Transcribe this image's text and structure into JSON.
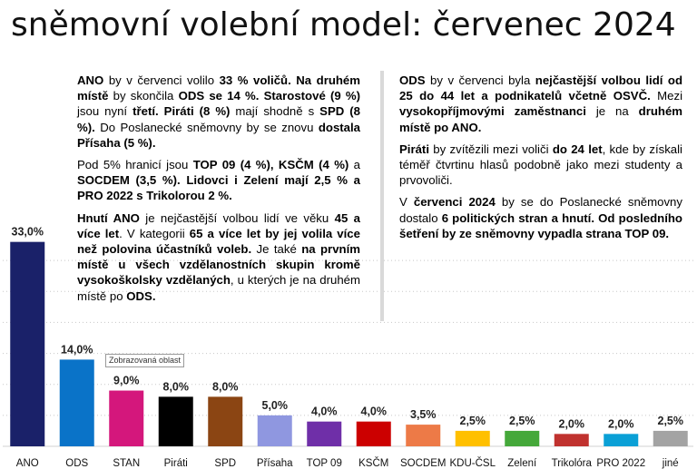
{
  "title": "sněmovní volební model: červenec 2024",
  "tooltip": "Zobrazovaná oblast",
  "chart_data": {
    "type": "bar",
    "title": "sněmovní volební model: červenec 2024",
    "categories": [
      "ANO",
      "ODS",
      "STAN",
      "Piráti",
      "SPD",
      "Přísaha",
      "TOP 09",
      "KSČM",
      "SOCDEM",
      "KDU-ČSL",
      "Zelení",
      "Trikolóra",
      "PRO 2022",
      "jiné"
    ],
    "values": [
      33.0,
      14.0,
      9.0,
      8.0,
      8.0,
      5.0,
      4.0,
      4.0,
      3.5,
      2.5,
      2.5,
      2.0,
      2.0,
      2.5
    ],
    "value_labels": [
      "33,0%",
      "14,0%",
      "9,0%",
      "8,0%",
      "8,0%",
      "5,0%",
      "4,0%",
      "4,0%",
      "3,5%",
      "2,5%",
      "2,5%",
      "2,0%",
      "2,0%",
      "2,5%"
    ],
    "colors": [
      "#1a2169",
      "#0a73c8",
      "#d4177c",
      "#000000",
      "#8b4513",
      "#8f97e0",
      "#6f2fa8",
      "#cc0000",
      "#ed7a47",
      "#ffc000",
      "#45a83a",
      "#c0322f",
      "#0aa0d6",
      "#a3a3a3"
    ],
    "xlabel": "",
    "ylabel": "",
    "ylim": [
      0,
      35
    ],
    "grid": "dotted horizontal",
    "legend": "none"
  },
  "text_left": [
    [
      {
        "t": "ANO",
        "b": true
      },
      {
        "t": " by v červenci volilo "
      },
      {
        "t": "33 % voličů. Na druhém místě",
        "b": true
      },
      {
        "t": " by skončila "
      },
      {
        "t": "ODS se 14 %. Starostové (9 %)",
        "b": true
      },
      {
        "t": " jsou nyní "
      },
      {
        "t": "třetí. Piráti (8 %)",
        "b": true
      },
      {
        "t": " mají shodně s "
      },
      {
        "t": "SPD (8 %).",
        "b": true
      },
      {
        "t": " Do Poslanecké sněmovny by se znovu "
      },
      {
        "t": "dostala Přísaha (5 %).",
        "b": true
      }
    ],
    [
      {
        "t": "Pod 5% hranicí jsou "
      },
      {
        "t": "TOP 09 (4 %), KSČM (4 %)",
        "b": true
      },
      {
        "t": " a "
      },
      {
        "t": "SOCDEM (3,5 %). Lidovci i Zelení mají 2,5 % a PRO 2022 s Trikolorou 2 %.",
        "b": true
      }
    ],
    [
      {
        "t": "Hnutí ANO",
        "b": true
      },
      {
        "t": " je nejčastější volbou lidí ve věku "
      },
      {
        "t": "45 a více let",
        "b": true
      },
      {
        "t": ". V kategorii "
      },
      {
        "t": "65 a více let by jej volila více než polovina účastníků voleb.",
        "b": true
      },
      {
        "t": " Je také "
      },
      {
        "t": "na prvním místě u všech vzdělanostních skupin kromě vysokoškolsky vzdělaných",
        "b": true
      },
      {
        "t": ", u kterých je na druhém místě po "
      },
      {
        "t": "ODS.",
        "b": true
      }
    ]
  ],
  "text_right": [
    [
      {
        "t": "ODS",
        "b": true
      },
      {
        "t": " by v červenci byla "
      },
      {
        "t": "nejčastější volbou lidí od 25 do 44 let a podnikatelů včetně OSVČ.",
        "b": true
      },
      {
        "t": " Mezi "
      },
      {
        "t": "vysokopříjmovými zaměstnanci",
        "b": true
      },
      {
        "t": " je na "
      },
      {
        "t": "druhém místě po ANO.",
        "b": true
      }
    ],
    [
      {
        "t": "Piráti",
        "b": true
      },
      {
        "t": " by zvítězili mezi voliči "
      },
      {
        "t": "do 24 let",
        "b": true
      },
      {
        "t": ", kde by získali téměř čtvrtinu hlasů podobně jako mezi studenty a prvovoliči."
      }
    ],
    [
      {
        "t": "V "
      },
      {
        "t": "červenci 2024",
        "b": true
      },
      {
        "t": " by se do Poslanecké sněmovny dostalo "
      },
      {
        "t": "6 politických stran a hnutí. Od posledního šetření by ze sněmovny vypadla strana TOP 09.",
        "b": true
      }
    ]
  ]
}
